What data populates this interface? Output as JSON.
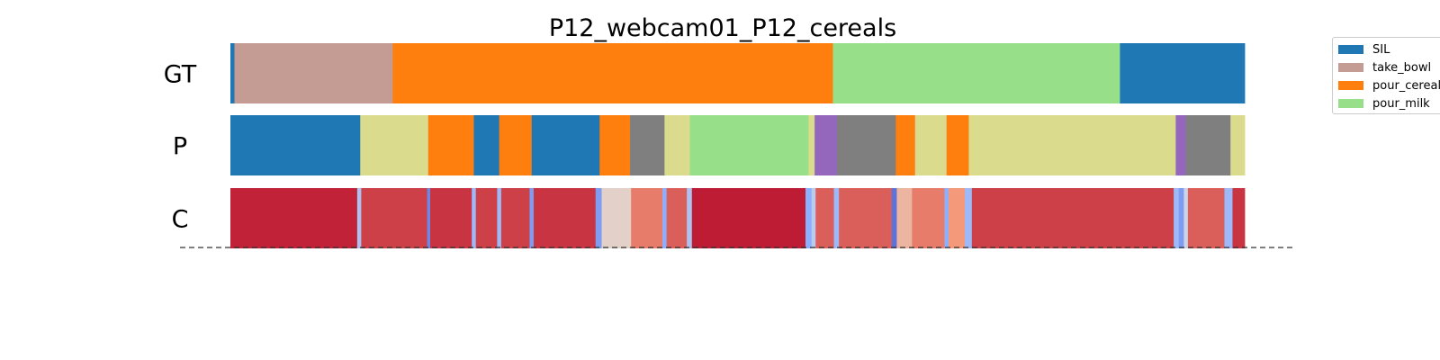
{
  "chart_data": {
    "type": "segmentation-timeline",
    "title": "P12_webcam01_P12_cereals",
    "x_range": [
      0,
      1
    ],
    "rows": [
      {
        "label": "GT",
        "segments": [
          {
            "start": 0.0,
            "end": 0.004,
            "class": "SIL"
          },
          {
            "start": 0.004,
            "end": 0.16,
            "class": "take_bowl"
          },
          {
            "start": 0.16,
            "end": 0.594,
            "class": "pour_cereals"
          },
          {
            "start": 0.594,
            "end": 0.877,
            "class": "pour_milk"
          },
          {
            "start": 0.877,
            "end": 1.0,
            "class": "SIL"
          }
        ]
      },
      {
        "label": "P",
        "segments": [
          {
            "start": 0.0,
            "end": 0.128,
            "class": "SIL"
          },
          {
            "start": 0.128,
            "end": 0.195,
            "class": "khaki"
          },
          {
            "start": 0.195,
            "end": 0.24,
            "class": "pour_cereals"
          },
          {
            "start": 0.24,
            "end": 0.265,
            "class": "SIL"
          },
          {
            "start": 0.265,
            "end": 0.297,
            "class": "pour_cereals"
          },
          {
            "start": 0.297,
            "end": 0.364,
            "class": "SIL"
          },
          {
            "start": 0.364,
            "end": 0.394,
            "class": "pour_cereals"
          },
          {
            "start": 0.394,
            "end": 0.428,
            "class": "gray"
          },
          {
            "start": 0.428,
            "end": 0.453,
            "class": "khaki"
          },
          {
            "start": 0.453,
            "end": 0.57,
            "class": "pour_milk"
          },
          {
            "start": 0.57,
            "end": 0.576,
            "class": "khaki"
          },
          {
            "start": 0.576,
            "end": 0.598,
            "class": "purple"
          },
          {
            "start": 0.598,
            "end": 0.656,
            "class": "gray"
          },
          {
            "start": 0.656,
            "end": 0.675,
            "class": "pour_cereals"
          },
          {
            "start": 0.675,
            "end": 0.706,
            "class": "khaki"
          },
          {
            "start": 0.706,
            "end": 0.728,
            "class": "pour_cereals"
          },
          {
            "start": 0.728,
            "end": 0.932,
            "class": "khaki"
          },
          {
            "start": 0.932,
            "end": 0.942,
            "class": "purple"
          },
          {
            "start": 0.942,
            "end": 0.986,
            "class": "gray"
          },
          {
            "start": 0.986,
            "end": 1.0,
            "class": "khaki"
          }
        ]
      },
      {
        "label": "C",
        "confidence": [
          {
            "start": 0.0,
            "end": 0.125,
            "value": 0.95
          },
          {
            "start": 0.125,
            "end": 0.129,
            "value": 0.35
          },
          {
            "start": 0.129,
            "end": 0.194,
            "value": 0.9
          },
          {
            "start": 0.194,
            "end": 0.197,
            "value": 0.15
          },
          {
            "start": 0.197,
            "end": 0.238,
            "value": 0.92
          },
          {
            "start": 0.238,
            "end": 0.242,
            "value": 0.3
          },
          {
            "start": 0.242,
            "end": 0.263,
            "value": 0.9
          },
          {
            "start": 0.263,
            "end": 0.267,
            "value": 0.3
          },
          {
            "start": 0.267,
            "end": 0.295,
            "value": 0.9
          },
          {
            "start": 0.295,
            "end": 0.299,
            "value": 0.2
          },
          {
            "start": 0.299,
            "end": 0.36,
            "value": 0.92
          },
          {
            "start": 0.36,
            "end": 0.366,
            "value": 0.2
          },
          {
            "start": 0.366,
            "end": 0.395,
            "value": 0.55
          },
          {
            "start": 0.395,
            "end": 0.426,
            "value": 0.8
          },
          {
            "start": 0.426,
            "end": 0.43,
            "value": 0.25
          },
          {
            "start": 0.43,
            "end": 0.45,
            "value": 0.85
          },
          {
            "start": 0.45,
            "end": 0.455,
            "value": 0.35
          },
          {
            "start": 0.455,
            "end": 0.567,
            "value": 0.96
          },
          {
            "start": 0.567,
            "end": 0.573,
            "value": 0.25
          },
          {
            "start": 0.573,
            "end": 0.577,
            "value": 0.4
          },
          {
            "start": 0.577,
            "end": 0.595,
            "value": 0.85
          },
          {
            "start": 0.595,
            "end": 0.6,
            "value": 0.3
          },
          {
            "start": 0.6,
            "end": 0.652,
            "value": 0.85
          },
          {
            "start": 0.652,
            "end": 0.657,
            "value": 0.1
          },
          {
            "start": 0.657,
            "end": 0.672,
            "value": 0.65
          },
          {
            "start": 0.672,
            "end": 0.704,
            "value": 0.8
          },
          {
            "start": 0.704,
            "end": 0.708,
            "value": 0.25
          },
          {
            "start": 0.708,
            "end": 0.724,
            "value": 0.75
          },
          {
            "start": 0.724,
            "end": 0.731,
            "value": 0.3
          },
          {
            "start": 0.731,
            "end": 0.93,
            "value": 0.9
          },
          {
            "start": 0.93,
            "end": 0.935,
            "value": 0.3
          },
          {
            "start": 0.935,
            "end": 0.94,
            "value": 0.2
          },
          {
            "start": 0.94,
            "end": 0.944,
            "value": 0.45
          },
          {
            "start": 0.944,
            "end": 0.98,
            "value": 0.85
          },
          {
            "start": 0.98,
            "end": 0.988,
            "value": 0.3
          },
          {
            "start": 0.988,
            "end": 1.0,
            "value": 0.92
          }
        ]
      }
    ],
    "colors": {
      "SIL": "#1f77b4",
      "take_bowl": "#c49c94",
      "pour_cereals": "#ff7f0e",
      "pour_milk": "#98df8a",
      "khaki": "#dbdb8d",
      "gray": "#7f7f7f",
      "purple": "#9467bd"
    },
    "legend": {
      "position": "top-right",
      "entries": [
        {
          "label": "SIL",
          "color": "#1f77b4"
        },
        {
          "label": "take_bowl",
          "color": "#c49c94"
        },
        {
          "label": "pour_cereals",
          "color": "#ff7f0e"
        },
        {
          "label": "pour_milk",
          "color": "#98df8a"
        }
      ]
    },
    "confidence_colormap": "coolwarm",
    "baseline": "dashed"
  }
}
